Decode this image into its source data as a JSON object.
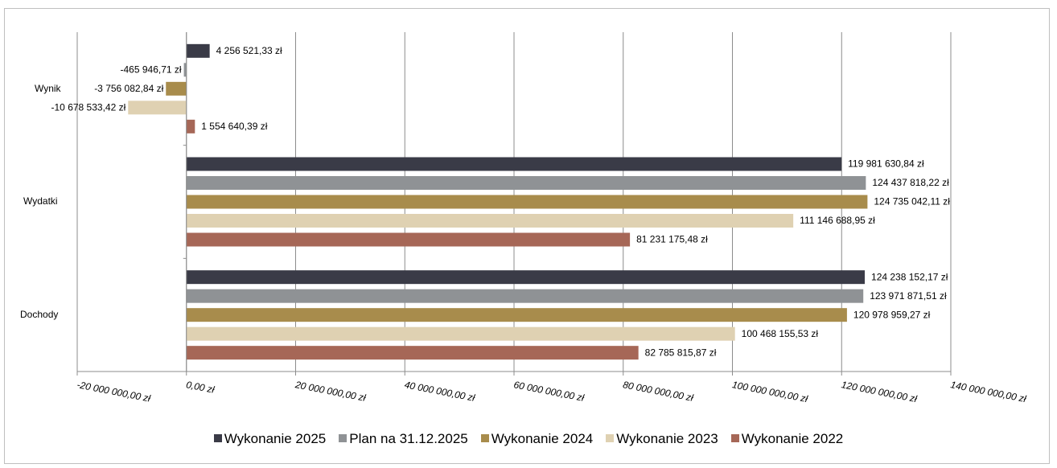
{
  "chart_data": {
    "type": "bar",
    "orientation": "horizontal",
    "categories": [
      "Wynik",
      "Wydatki",
      "Dochody"
    ],
    "series": [
      {
        "name": "Wykonanie 2025",
        "color": "#3a3b47",
        "values": [
          4256521.33,
          119981630.84,
          124238152.17
        ],
        "labels": [
          "4 256 521,33 zł",
          "119 981 630,84 zł",
          "124 238 152,17 zł"
        ]
      },
      {
        "name": "Plan na 31.12.2025",
        "color": "#8f9295",
        "values": [
          -465946.71,
          124437818.22,
          123971871.51
        ],
        "labels": [
          "-465 946,71 zł",
          "124 437 818,22 zł",
          "123 971 871,51 zł"
        ]
      },
      {
        "name": "Wykonanie 2024",
        "color": "#a88c4c",
        "values": [
          -3756082.84,
          124735042.11,
          120978959.27
        ],
        "labels": [
          "-3 756 082,84 zł",
          "124 735 042,11 zł",
          "120 978 959,27 zł"
        ]
      },
      {
        "name": "Wykonanie 2023",
        "color": "#dfd1b2",
        "values": [
          -10678533.42,
          111146688.95,
          100468155.53
        ],
        "labels": [
          "-10 678 533,42 zł",
          "111 146 688,95 zł",
          "100 468 155,53 zł"
        ]
      },
      {
        "name": "Wykonanie 2022",
        "color": "#a66757",
        "values": [
          1554640.39,
          81231175.48,
          82785815.87
        ],
        "labels": [
          "1 554 640,39 zł",
          "81 231 175,48 zł",
          "82 785 815,87 zł"
        ]
      }
    ],
    "xlim": [
      -20000000,
      140000000
    ],
    "xticks": [
      -20000000,
      0,
      20000000,
      40000000,
      60000000,
      80000000,
      100000000,
      120000000,
      140000000
    ],
    "xtick_labels": [
      "-20 000 000,00 zł",
      "0,00 zł",
      "20 000 000,00 zł",
      "40 000 000,00 zł",
      "60 000 000,00 zł",
      "80 000 000,00 zł",
      "100 000 000,00 zł",
      "120 000 000,00 zł",
      "140 000 000,00 zł"
    ],
    "grid": true,
    "legend_position": "bottom",
    "title": "",
    "xlabel": "",
    "ylabel": ""
  }
}
